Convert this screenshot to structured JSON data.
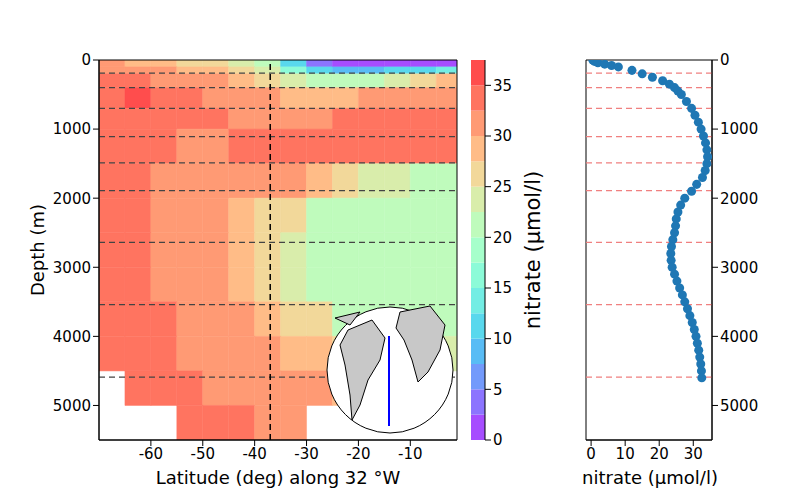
{
  "chart_data": [
    {
      "type": "heatmap",
      "x_label": "Latitude (deg) along 32 °W",
      "y_label": "Depth (m)",
      "xlim": [
        -70,
        -1
      ],
      "xticks": [
        -60,
        -50,
        -40,
        -30,
        -20,
        -10
      ],
      "ylim": [
        0,
        5500
      ],
      "yticks": [
        0,
        1000,
        2000,
        3000,
        4000,
        5000
      ],
      "lat_edges": [
        -70,
        -65,
        -60,
        -55,
        -50,
        -45,
        -40,
        -35,
        -30,
        -25,
        -20,
        -15,
        -10,
        -5,
        -1
      ],
      "depth_edges": [
        0,
        100,
        200,
        400,
        700,
        1000,
        1500,
        2000,
        2500,
        3000,
        3500,
        4000,
        4500,
        5000,
        5500
      ],
      "cells": [
        [
          30,
          29,
          28,
          27,
          26,
          24,
          20,
          10,
          3,
          1,
          1,
          1,
          1,
          1
        ],
        [
          32,
          31,
          30,
          29,
          28,
          27,
          24,
          17,
          10,
          8,
          8,
          10,
          12,
          14
        ],
        [
          33,
          33,
          32,
          31,
          30,
          29,
          27,
          23,
          20,
          20,
          22,
          24,
          26,
          28
        ],
        [
          34,
          35,
          34,
          33,
          32,
          31,
          30,
          29,
          28,
          29,
          30,
          31,
          32,
          32
        ],
        [
          34,
          34,
          34,
          33,
          33,
          32,
          32,
          32,
          32,
          33,
          34,
          34,
          34,
          34
        ],
        [
          33,
          33,
          33,
          32,
          32,
          33,
          33,
          33,
          33,
          33,
          33,
          33,
          33,
          33
        ],
        [
          33,
          33,
          32,
          32,
          32,
          31,
          31,
          30,
          28,
          26,
          24,
          23,
          22,
          22
        ],
        [
          33,
          33,
          32,
          31,
          30,
          29,
          27,
          25,
          22,
          21,
          21,
          21,
          21,
          21
        ],
        [
          33,
          33,
          32,
          31,
          30,
          28,
          26,
          23,
          21,
          21,
          21,
          21,
          21,
          21
        ],
        [
          33,
          33,
          32,
          31,
          31,
          29,
          27,
          24,
          22,
          21,
          21,
          21,
          21,
          21
        ],
        [
          33,
          33,
          33,
          32,
          31,
          30,
          29,
          27,
          25,
          22,
          21,
          21,
          21,
          21
        ],
        [
          33,
          33,
          33,
          32,
          32,
          31,
          30,
          29,
          28,
          27,
          26,
          25,
          24,
          23
        ],
        [
          null,
          33,
          33,
          33,
          32,
          32,
          31,
          31,
          30,
          29,
          28,
          27,
          26,
          null
        ],
        [
          null,
          null,
          null,
          33,
          33,
          33,
          32,
          31,
          null,
          null,
          null,
          null,
          null,
          null
        ]
      ],
      "colorbar": {
        "label": "nitrate (μmol/l)",
        "range": [
          0,
          37.5
        ],
        "levels": [
          0,
          2.5,
          5,
          7.5,
          10,
          12.5,
          15,
          17.5,
          20,
          22.5,
          25,
          27.5,
          30,
          32.5,
          35,
          37.5
        ],
        "ticks": [
          0,
          5,
          10,
          15,
          20,
          25,
          30,
          35
        ]
      },
      "station_lat": -37,
      "depth_levels": [
        190,
        400,
        700,
        1110,
        1490,
        1890,
        2640,
        3540,
        4590
      ]
    },
    {
      "type": "scatter",
      "x_label": "nitrate (μmol/l)",
      "color": "#1f77b4",
      "marker": "circle",
      "xlim": [
        -1.5,
        35.5
      ],
      "xticks": [
        0,
        10,
        20,
        30
      ],
      "ylim": [
        0,
        5500
      ],
      "yticks": [
        0,
        1000,
        2000,
        3000,
        4000,
        5000
      ],
      "x": [
        0.5,
        1,
        2,
        4,
        6,
        8,
        12,
        15,
        18,
        21,
        23,
        24.5,
        25.5,
        26.5,
        28,
        29.5,
        30.5,
        31.5,
        32.3,
        33,
        33.6,
        34,
        34.2,
        34,
        33.5,
        32.7,
        31,
        29.5,
        27.5,
        26.3,
        25.5,
        25,
        24.8,
        24.5,
        24,
        23.6,
        23.4,
        23.5,
        23.8,
        24.5,
        25.2,
        26,
        26.8,
        27.5,
        28.3,
        29,
        29.7,
        30.3,
        30.8,
        31.2,
        31.6,
        31.9,
        32.2,
        32.4,
        32.5
      ],
      "y": [
        0,
        20,
        40,
        60,
        80,
        100,
        150,
        200,
        250,
        300,
        350,
        400,
        450,
        500,
        600,
        700,
        800,
        900,
        1000,
        1100,
        1200,
        1300,
        1400,
        1500,
        1600,
        1700,
        1800,
        1900,
        2000,
        2100,
        2200,
        2300,
        2400,
        2500,
        2600,
        2700,
        2800,
        2900,
        3000,
        3100,
        3200,
        3300,
        3400,
        3500,
        3600,
        3700,
        3800,
        3900,
        4000,
        4100,
        4200,
        4300,
        4400,
        4500,
        4600
      ],
      "depth_levels": [
        190,
        400,
        700,
        1110,
        1490,
        1890,
        2640,
        3540,
        4590
      ]
    }
  ]
}
